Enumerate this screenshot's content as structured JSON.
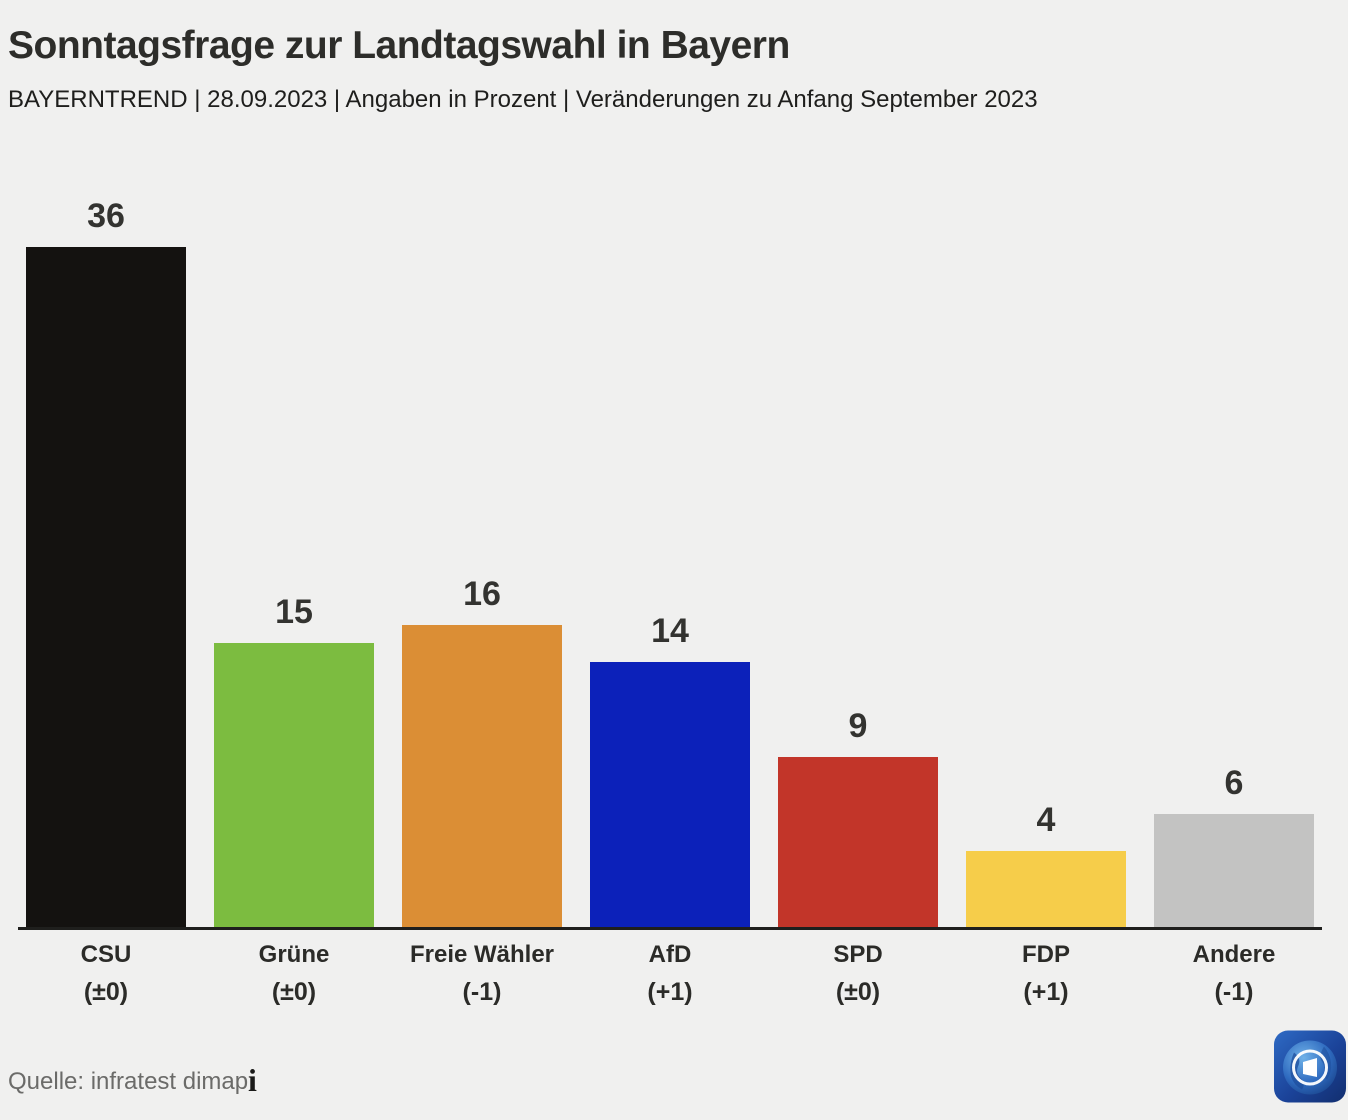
{
  "page": {
    "title": "Sonntagsfrage zur Landtagswahl in Bayern",
    "subtitle": "BAYERNTREND | 28.09.2023 | Angaben in Prozent | Veränderungen zu Anfang September 2023",
    "source": "Quelle: infratest dimap",
    "info_icon_glyph": "i",
    "logo_name": "ard-tagesschau-logo"
  },
  "colors": {
    "background": "#F0F0EF",
    "baseline": "#1F1F1D",
    "title_text": "#2D2D2A",
    "subtitle_text": "#1E1E1C",
    "value_text": "#333330",
    "category_text": "#2B2B28",
    "source_text": "#6B6B69",
    "logo_blue_dark": "#153A8C",
    "logo_blue_light": "#3D7FD6"
  },
  "chart_data": {
    "type": "bar",
    "title": "Sonntagsfrage zur Landtagswahl in Bayern",
    "subtitle": "BAYERNTREND | 28.09.2023 | Angaben in Prozent | Veränderungen zu Anfang September 2023",
    "unit": "Prozent",
    "categories": [
      "CSU",
      "Grüne",
      "Freie Wähler",
      "AfD",
      "SPD",
      "FDP",
      "Andere"
    ],
    "values": [
      36,
      15,
      16,
      14,
      9,
      4,
      6
    ],
    "changes": [
      "(±0)",
      "(±0)",
      "(-1)",
      "(+1)",
      "(±0)",
      "(+1)",
      "(-1)"
    ],
    "bar_colors": [
      "#141210",
      "#7CBC40",
      "#DB8E35",
      "#0C21BA",
      "#C23529",
      "#F6CD4A",
      "#C3C3C2"
    ],
    "ylim": [
      0,
      36
    ],
    "grid": false,
    "legend": false,
    "value_labels_position": "above bars",
    "change_labels_position": "below category names"
  }
}
